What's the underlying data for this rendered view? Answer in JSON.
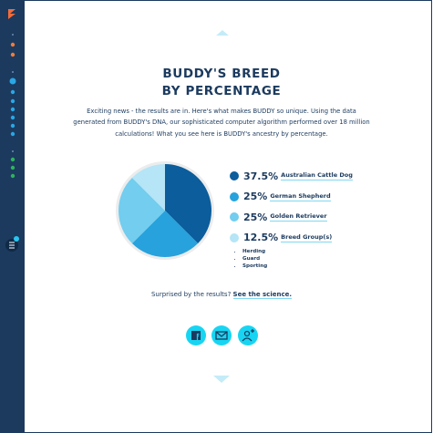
{
  "title": {
    "line1": "BUDDY'S BREED",
    "line2": "BY PERCENTAGE"
  },
  "intro": "Exciting news - the results are in. Here's what makes BUDDY so unique. Using the data generated from BUDDY's DNA, our sophisticated computer algorithm performed over 18 million calculations! What you see here is BUDDY's ancestry by percentage.",
  "chart_data": {
    "type": "pie",
    "categories": [
      "Australian Cattle Dog",
      "German Shepherd",
      "Golden Retriever",
      "Breed Group(s)"
    ],
    "values": [
      37.5,
      25,
      25,
      12.5
    ],
    "value_labels": [
      "37.5%",
      "25%",
      "25%",
      "12.5%"
    ],
    "colors": [
      "#0b5d9c",
      "#27a2dc",
      "#72cdef",
      "#b5e5f6"
    ]
  },
  "breed_group": {
    "items": [
      "Herding",
      "Guard",
      "Sporting"
    ]
  },
  "footer": {
    "question": "Surprised by the results?",
    "link": "See the science."
  }
}
